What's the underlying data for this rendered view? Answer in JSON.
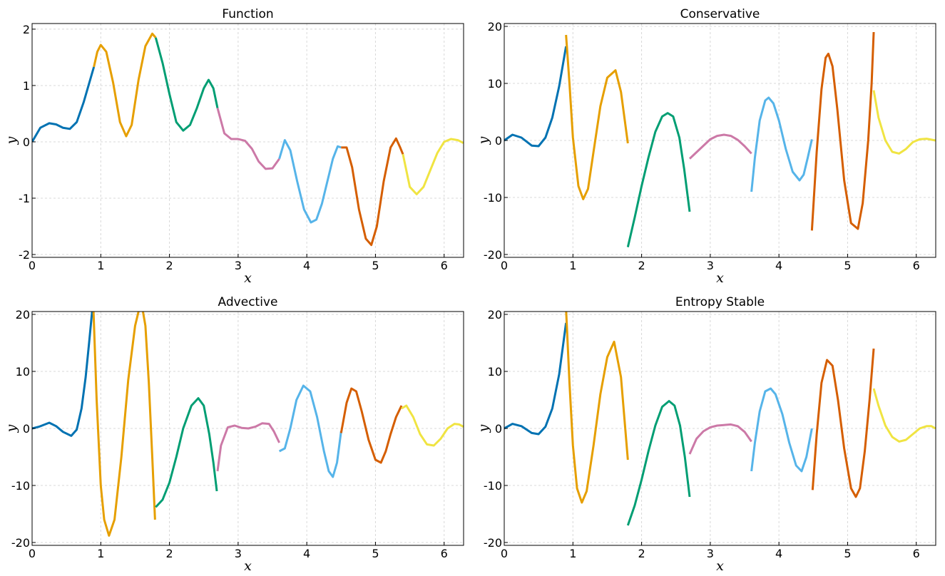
{
  "figure": {
    "palette": [
      "#0072b2",
      "#e69f00",
      "#009e73",
      "#cc79a7",
      "#56b4e9",
      "#d55e00",
      "#f0e442"
    ]
  },
  "chart_data": [
    {
      "type": "line",
      "title": "Function",
      "xlabel": "x",
      "ylabel": "y",
      "xlim": [
        0,
        6.2832
      ],
      "ylim": [
        -2.05,
        2.1
      ],
      "xticks": [
        "0",
        "1",
        "2",
        "3",
        "4",
        "5",
        "6"
      ],
      "yticks": [
        "-2",
        "-1",
        "0",
        "1",
        "2"
      ],
      "ytick_values": [
        -2,
        -1,
        0,
        1,
        2
      ],
      "grid": true,
      "series": [
        {
          "color": "#0072b2",
          "x": [
            0,
            0.12,
            0.25,
            0.35,
            0.45,
            0.55,
            0.65,
            0.75,
            0.9
          ],
          "y": [
            0,
            0.25,
            0.33,
            0.31,
            0.25,
            0.23,
            0.35,
            0.7,
            1.33
          ]
        },
        {
          "color": "#e69f00",
          "x": [
            0.9,
            0.95,
            1.0,
            1.08,
            1.18,
            1.28,
            1.37,
            1.45,
            1.55,
            1.65,
            1.75,
            1.8
          ],
          "y": [
            1.33,
            1.6,
            1.72,
            1.6,
            1.05,
            0.35,
            0.1,
            0.3,
            1.1,
            1.7,
            1.92,
            1.85
          ]
        },
        {
          "color": "#009e73",
          "x": [
            1.8,
            1.9,
            2.0,
            2.1,
            2.2,
            2.3,
            2.4,
            2.5,
            2.57,
            2.64,
            2.7
          ],
          "y": [
            1.85,
            1.4,
            0.85,
            0.35,
            0.2,
            0.3,
            0.6,
            0.95,
            1.1,
            0.95,
            0.6
          ]
        },
        {
          "color": "#cc79a7",
          "x": [
            2.7,
            2.8,
            2.9,
            3.0,
            3.1,
            3.2,
            3.3,
            3.4,
            3.5,
            3.6
          ],
          "y": [
            0.6,
            0.15,
            0.05,
            0.05,
            0.02,
            -0.12,
            -0.35,
            -0.48,
            -0.47,
            -0.3
          ]
        },
        {
          "color": "#56b4e9",
          "x": [
            3.6,
            3.68,
            3.76,
            3.86,
            3.96,
            4.06,
            4.14,
            4.22,
            4.3,
            4.38,
            4.45,
            4.5
          ],
          "y": [
            -0.3,
            0.03,
            -0.15,
            -0.7,
            -1.2,
            -1.43,
            -1.38,
            -1.1,
            -0.7,
            -0.3,
            -0.08,
            -0.1
          ]
        },
        {
          "color": "#d55e00",
          "x": [
            4.5,
            4.58,
            4.66,
            4.76,
            4.86,
            4.94,
            5.02,
            5.12,
            5.22,
            5.3,
            5.36,
            5.4
          ],
          "y": [
            -0.1,
            -0.1,
            -0.45,
            -1.2,
            -1.72,
            -1.83,
            -1.5,
            -0.7,
            -0.1,
            0.06,
            -0.1,
            -0.22
          ]
        },
        {
          "color": "#f0e442",
          "x": [
            5.4,
            5.5,
            5.6,
            5.7,
            5.8,
            5.9,
            6.0,
            6.1,
            6.2,
            6.28
          ],
          "y": [
            -0.22,
            -0.8,
            -0.93,
            -0.8,
            -0.5,
            -0.2,
            0.0,
            0.05,
            0.03,
            -0.02
          ]
        }
      ]
    },
    {
      "type": "line",
      "title": "Conservative",
      "xlabel": "x",
      "ylabel": "y",
      "xlim": [
        0,
        6.2832
      ],
      "ylim": [
        -20.5,
        20.5
      ],
      "xticks": [
        "0",
        "1",
        "2",
        "3",
        "4",
        "5",
        "6"
      ],
      "yticks": [
        "-20",
        "-10",
        "0",
        "10",
        "20"
      ],
      "ytick_values": [
        -20,
        -10,
        0,
        10,
        20
      ],
      "grid": true,
      "series": [
        {
          "color": "#0072b2",
          "x": [
            0,
            0.12,
            0.25,
            0.4,
            0.5,
            0.6,
            0.7,
            0.8,
            0.9
          ],
          "y": [
            0,
            1.0,
            0.5,
            -0.9,
            -1.0,
            0.5,
            4.0,
            9.5,
            16.5
          ]
        },
        {
          "color": "#e69f00",
          "x": [
            0.9,
            0.95,
            1.0,
            1.08,
            1.15,
            1.22,
            1.3,
            1.4,
            1.5,
            1.62,
            1.7,
            1.8
          ],
          "y": [
            18.5,
            10.0,
            0.5,
            -8.0,
            -10.3,
            -8.5,
            -2.0,
            6.0,
            11.0,
            12.3,
            8.5,
            -0.5
          ]
        },
        {
          "color": "#009e73",
          "x": [
            1.8,
            1.9,
            2.0,
            2.1,
            2.2,
            2.3,
            2.38,
            2.46,
            2.55,
            2.62,
            2.7
          ],
          "y": [
            -18.7,
            -13.5,
            -8.0,
            -3.0,
            1.5,
            4.2,
            4.8,
            4.2,
            0.5,
            -5.0,
            -12.5
          ]
        },
        {
          "color": "#cc79a7",
          "x": [
            2.7,
            2.85,
            3.0,
            3.1,
            3.2,
            3.3,
            3.4,
            3.5,
            3.6
          ],
          "y": [
            -3.2,
            -1.5,
            0.2,
            0.8,
            1.0,
            0.8,
            0.1,
            -1.0,
            -2.3
          ]
        },
        {
          "color": "#56b4e9",
          "x": [
            3.6,
            3.65,
            3.72,
            3.8,
            3.85,
            3.92,
            4.0,
            4.1,
            4.2,
            4.3,
            4.36,
            4.42,
            4.48
          ],
          "y": [
            -9.0,
            -3.0,
            3.5,
            7.0,
            7.5,
            6.5,
            3.5,
            -1.5,
            -5.5,
            -7.0,
            -6.0,
            -3.0,
            0.2
          ]
        },
        {
          "color": "#d55e00",
          "x": [
            4.48,
            4.55,
            4.62,
            4.68,
            4.72,
            4.78,
            4.85,
            4.95,
            5.05,
            5.15,
            5.22,
            5.3,
            5.35,
            5.38
          ],
          "y": [
            -15.8,
            -2.0,
            9.0,
            14.5,
            15.2,
            13.0,
            5.5,
            -7.0,
            -14.5,
            -15.5,
            -11.0,
            0.0,
            10.0,
            19.0
          ]
        },
        {
          "color": "#f0e442",
          "x": [
            5.38,
            5.45,
            5.55,
            5.65,
            5.75,
            5.85,
            5.95,
            6.05,
            6.15,
            6.28
          ],
          "y": [
            8.8,
            4.0,
            0.0,
            -2.0,
            -2.3,
            -1.5,
            -0.3,
            0.2,
            0.3,
            0.0
          ]
        }
      ]
    },
    {
      "type": "line",
      "title": "Advective",
      "xlabel": "x",
      "ylabel": "y",
      "xlim": [
        0,
        6.2832
      ],
      "ylim": [
        -20.5,
        20.5
      ],
      "xticks": [
        "0",
        "1",
        "2",
        "3",
        "4",
        "5",
        "6"
      ],
      "yticks": [
        "-20",
        "-10",
        "0",
        "10",
        "20"
      ],
      "ytick_values": [
        -20,
        -10,
        0,
        10,
        20
      ],
      "grid": true,
      "series": [
        {
          "color": "#0072b2",
          "x": [
            0,
            0.1,
            0.25,
            0.35,
            0.45,
            0.57,
            0.65,
            0.72,
            0.78,
            0.83,
            0.87,
            0.89
          ],
          "y": [
            0,
            0.3,
            1.0,
            0.4,
            -0.6,
            -1.3,
            -0.2,
            3.5,
            9.0,
            15.0,
            20.0,
            22.0
          ]
        },
        {
          "color": "#e69f00",
          "x": [
            0.89,
            0.94,
            1.0,
            1.05,
            1.12,
            1.2,
            1.3,
            1.4,
            1.5,
            1.55,
            1.6,
            1.65,
            1.7,
            1.75,
            1.79
          ],
          "y": [
            22.0,
            5.0,
            -10.0,
            -16.0,
            -18.8,
            -16.0,
            -5.0,
            8.5,
            18.0,
            20.5,
            21.5,
            18.0,
            8.0,
            -5.0,
            -16.0
          ]
        },
        {
          "color": "#009e73",
          "x": [
            1.8,
            1.9,
            2.0,
            2.1,
            2.2,
            2.32,
            2.42,
            2.5,
            2.58,
            2.64,
            2.69
          ],
          "y": [
            -13.8,
            -12.5,
            -9.5,
            -5.0,
            0.0,
            4.0,
            5.3,
            4.0,
            -1.0,
            -6.0,
            -11.0
          ]
        },
        {
          "color": "#cc79a7",
          "x": [
            2.7,
            2.75,
            2.85,
            2.95,
            3.05,
            3.15,
            3.25,
            3.35,
            3.45,
            3.52,
            3.6
          ],
          "y": [
            -7.5,
            -3.0,
            0.2,
            0.5,
            0.1,
            0.0,
            0.3,
            0.9,
            0.8,
            -0.5,
            -2.5
          ]
        },
        {
          "color": "#56b4e9",
          "x": [
            3.6,
            3.68,
            3.76,
            3.85,
            3.95,
            4.05,
            4.15,
            4.25,
            4.32,
            4.38,
            4.44,
            4.5
          ],
          "y": [
            -4.0,
            -3.5,
            0.0,
            5.0,
            7.5,
            6.5,
            2.0,
            -4.0,
            -7.5,
            -8.5,
            -6.0,
            -0.5
          ]
        },
        {
          "color": "#d55e00",
          "x": [
            4.5,
            4.58,
            4.65,
            4.72,
            4.8,
            4.9,
            5.0,
            5.08,
            5.15,
            5.22,
            5.3,
            5.38
          ],
          "y": [
            -0.8,
            4.5,
            7.0,
            6.5,
            3.0,
            -2.0,
            -5.5,
            -6.0,
            -4.0,
            -1.0,
            2.0,
            4.0
          ]
        },
        {
          "color": "#f0e442",
          "x": [
            5.38,
            5.45,
            5.55,
            5.65,
            5.75,
            5.85,
            5.95,
            6.05,
            6.15,
            6.22,
            6.28
          ],
          "y": [
            3.5,
            4.0,
            2.0,
            -1.0,
            -2.8,
            -3.0,
            -1.8,
            0.0,
            0.8,
            0.7,
            0.3
          ]
        }
      ]
    },
    {
      "type": "line",
      "title": "Entropy Stable",
      "xlabel": "x",
      "ylabel": "y",
      "xlim": [
        0,
        6.2832
      ],
      "ylim": [
        -20.5,
        20.5
      ],
      "xticks": [
        "0",
        "1",
        "2",
        "3",
        "4",
        "5",
        "6"
      ],
      "yticks": [
        "-20",
        "-10",
        "0",
        "10",
        "20"
      ],
      "ytick_values": [
        -20,
        -10,
        0,
        10,
        20
      ],
      "grid": true,
      "series": [
        {
          "color": "#0072b2",
          "x": [
            0,
            0.12,
            0.25,
            0.4,
            0.5,
            0.6,
            0.7,
            0.8,
            0.9
          ],
          "y": [
            0,
            0.8,
            0.4,
            -0.8,
            -1.0,
            0.3,
            3.5,
            9.5,
            18.5
          ]
        },
        {
          "color": "#e69f00",
          "x": [
            0.9,
            0.95,
            1.0,
            1.06,
            1.13,
            1.2,
            1.3,
            1.4,
            1.5,
            1.6,
            1.7,
            1.8
          ],
          "y": [
            21.0,
            8.0,
            -3.0,
            -10.5,
            -13.0,
            -11.0,
            -3.0,
            6.0,
            12.5,
            15.2,
            9.0,
            -5.5
          ]
        },
        {
          "color": "#009e73",
          "x": [
            1.8,
            1.9,
            2.0,
            2.1,
            2.2,
            2.3,
            2.4,
            2.48,
            2.56,
            2.63,
            2.7
          ],
          "y": [
            -17.0,
            -13.5,
            -9.0,
            -4.0,
            0.5,
            3.8,
            4.8,
            4.0,
            0.5,
            -5.0,
            -12.0
          ]
        },
        {
          "color": "#cc79a7",
          "x": [
            2.7,
            2.8,
            2.9,
            3.0,
            3.1,
            3.2,
            3.3,
            3.4,
            3.5,
            3.6
          ],
          "y": [
            -4.5,
            -1.8,
            -0.5,
            0.2,
            0.5,
            0.6,
            0.7,
            0.4,
            -0.6,
            -2.3
          ]
        },
        {
          "color": "#56b4e9",
          "x": [
            3.6,
            3.65,
            3.72,
            3.8,
            3.88,
            3.95,
            4.05,
            4.15,
            4.25,
            4.33,
            4.4,
            4.48
          ],
          "y": [
            -7.5,
            -2.5,
            3.0,
            6.5,
            7.0,
            6.0,
            2.5,
            -2.5,
            -6.5,
            -7.5,
            -5.0,
            0.0
          ]
        },
        {
          "color": "#d55e00",
          "x": [
            4.49,
            4.55,
            4.62,
            4.7,
            4.78,
            4.86,
            4.95,
            5.05,
            5.12,
            5.18,
            5.25,
            5.32,
            5.38
          ],
          "y": [
            -10.8,
            -1.0,
            8.0,
            12.0,
            11.0,
            5.0,
            -3.5,
            -10.5,
            -12.0,
            -10.5,
            -4.0,
            5.0,
            14.0
          ]
        },
        {
          "color": "#f0e442",
          "x": [
            5.38,
            5.45,
            5.55,
            5.65,
            5.75,
            5.85,
            5.95,
            6.05,
            6.15,
            6.22,
            6.28
          ],
          "y": [
            7.0,
            4.0,
            0.5,
            -1.5,
            -2.3,
            -2.0,
            -1.0,
            0.0,
            0.4,
            0.4,
            0.0
          ]
        }
      ]
    }
  ]
}
